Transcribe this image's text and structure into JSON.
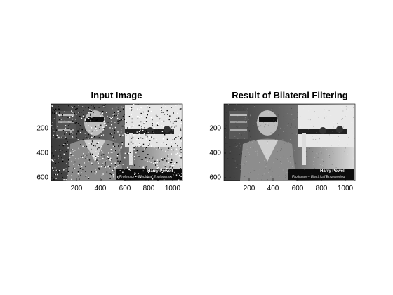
{
  "figure": {
    "left": {
      "title": "Input Image",
      "x_ticks": [
        "200",
        "400",
        "600",
        "800",
        "1000"
      ],
      "y_ticks": [
        "200",
        "400",
        "600"
      ],
      "caption_name": "Harry Powell",
      "caption_role": "Professor – Electrical Engineering"
    },
    "right": {
      "title": "Result of Bilateral Filtering",
      "x_ticks": [
        "200",
        "400",
        "600",
        "800",
        "1000"
      ],
      "y_ticks": [
        "200",
        "400",
        "600"
      ],
      "caption_name": "Harry Powell",
      "caption_role": "Professor – Electrical Engineering"
    }
  },
  "colors": {
    "background": "#ffffff",
    "axis": "#000000"
  }
}
